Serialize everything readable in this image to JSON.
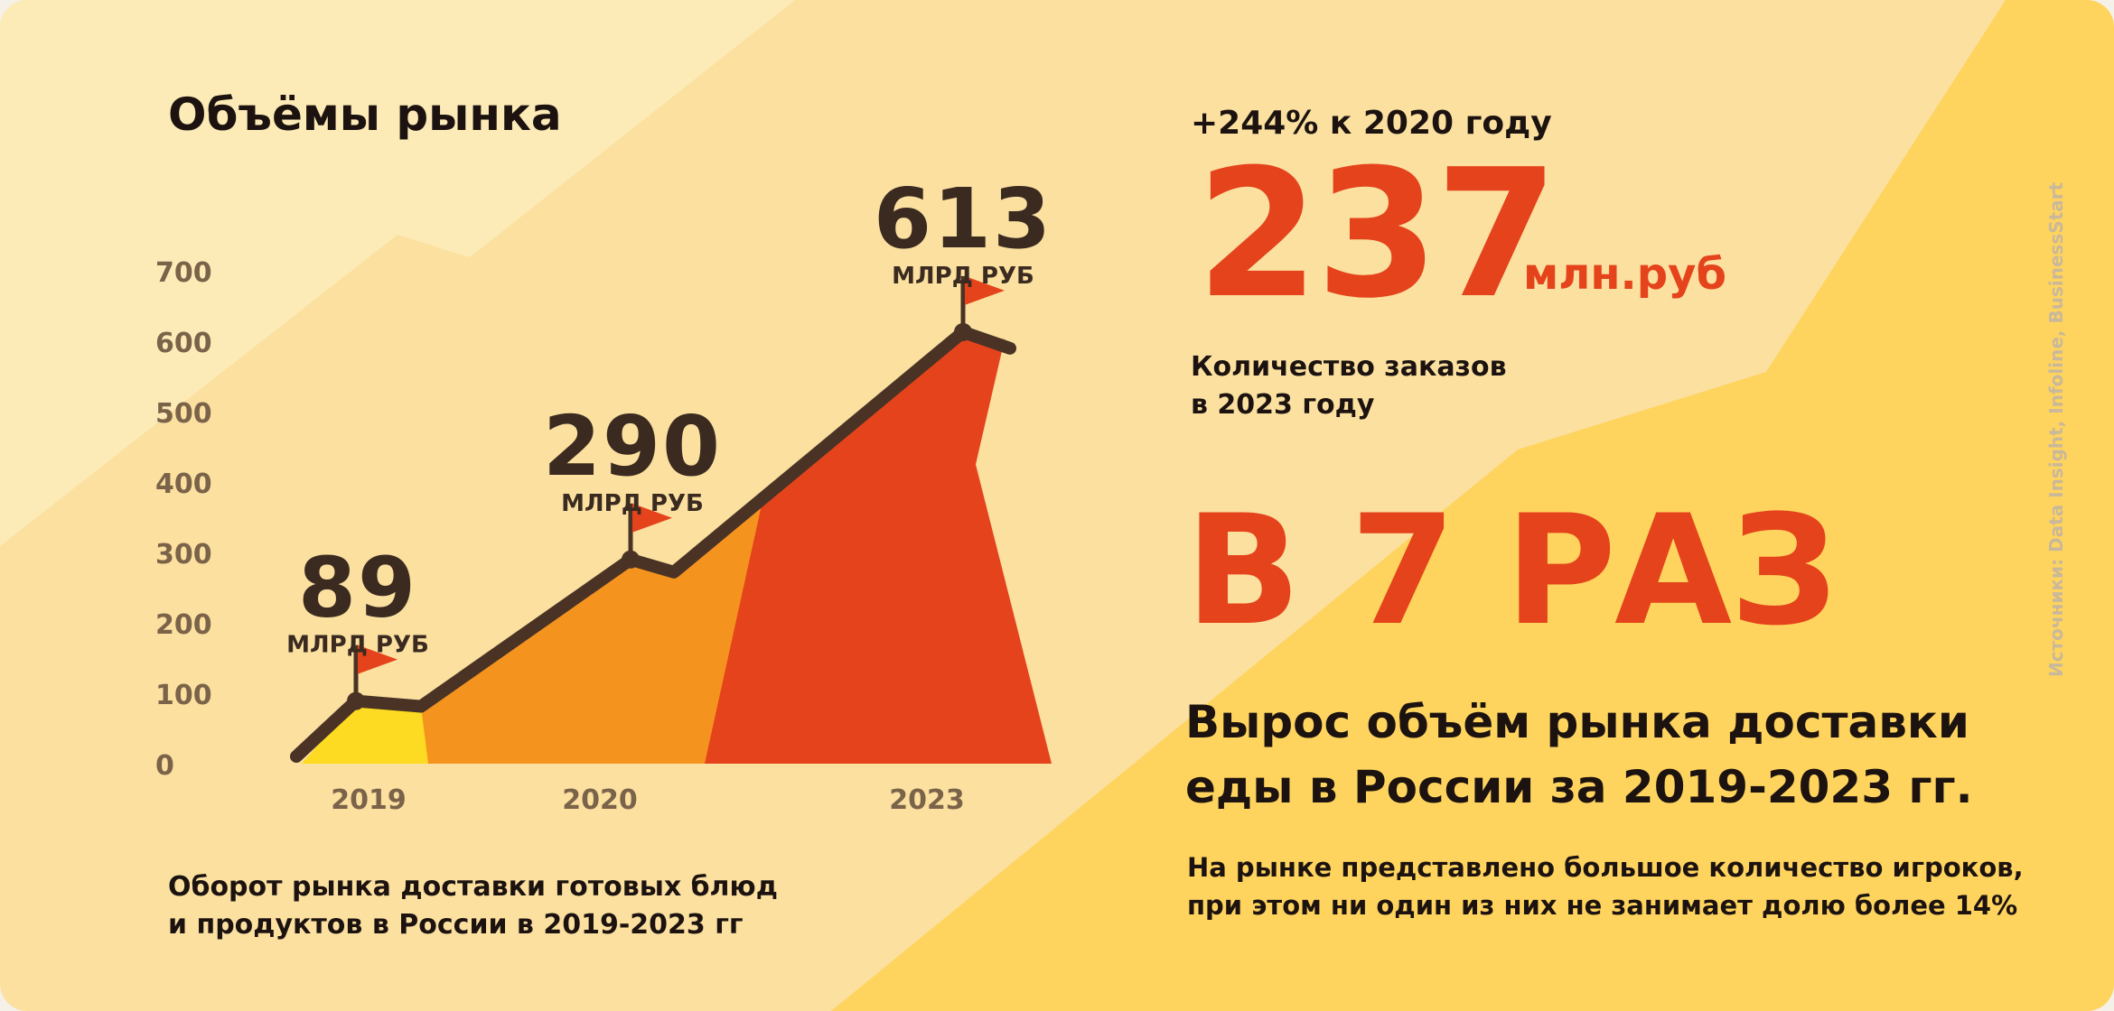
{
  "title": "Объёмы рынка",
  "caption": [
    "Оборот рынка доставки готовых блюд",
    "и продуктов в России в 2019-2023 гг"
  ],
  "stats": {
    "growth_label": "+244% к 2020 году",
    "orders_value": "237",
    "orders_unit": "млн.руб",
    "orders_caption": [
      "Количество заказов",
      "в 2023 году"
    ],
    "multiplier": "В 7 РАЗ",
    "headline": [
      "Вырос объём рынка доставки",
      "еды в России за 2019-2023 гг."
    ],
    "note": [
      "На рынке представлено большое количество игроков,",
      "при этом ни один из них не занимает долю более 14%"
    ]
  },
  "source": "Источники: Data Insight, Infoline, BusinessStart",
  "colors": {
    "accent": "#e5431b",
    "text": "#1c1310",
    "line": "#4a3324",
    "tick": "#7a6349",
    "bar_2019": "#fddb22",
    "bar_2020": "#f5931f",
    "bar_2023": "#e5431b",
    "flag": "#e5431b"
  },
  "chart_data": {
    "type": "area",
    "title": "Объёмы рынка",
    "xlabel": "",
    "ylabel": "",
    "ylim": [
      0,
      700
    ],
    "yticks": [
      0,
      100,
      200,
      300,
      400,
      500,
      600,
      700
    ],
    "categories": [
      "2019",
      "2020",
      "2023"
    ],
    "values": [
      89,
      290,
      613
    ],
    "data_labels": [
      "89",
      "290",
      "613"
    ],
    "unit_label": "МЛРД РУБ",
    "grid": false
  }
}
